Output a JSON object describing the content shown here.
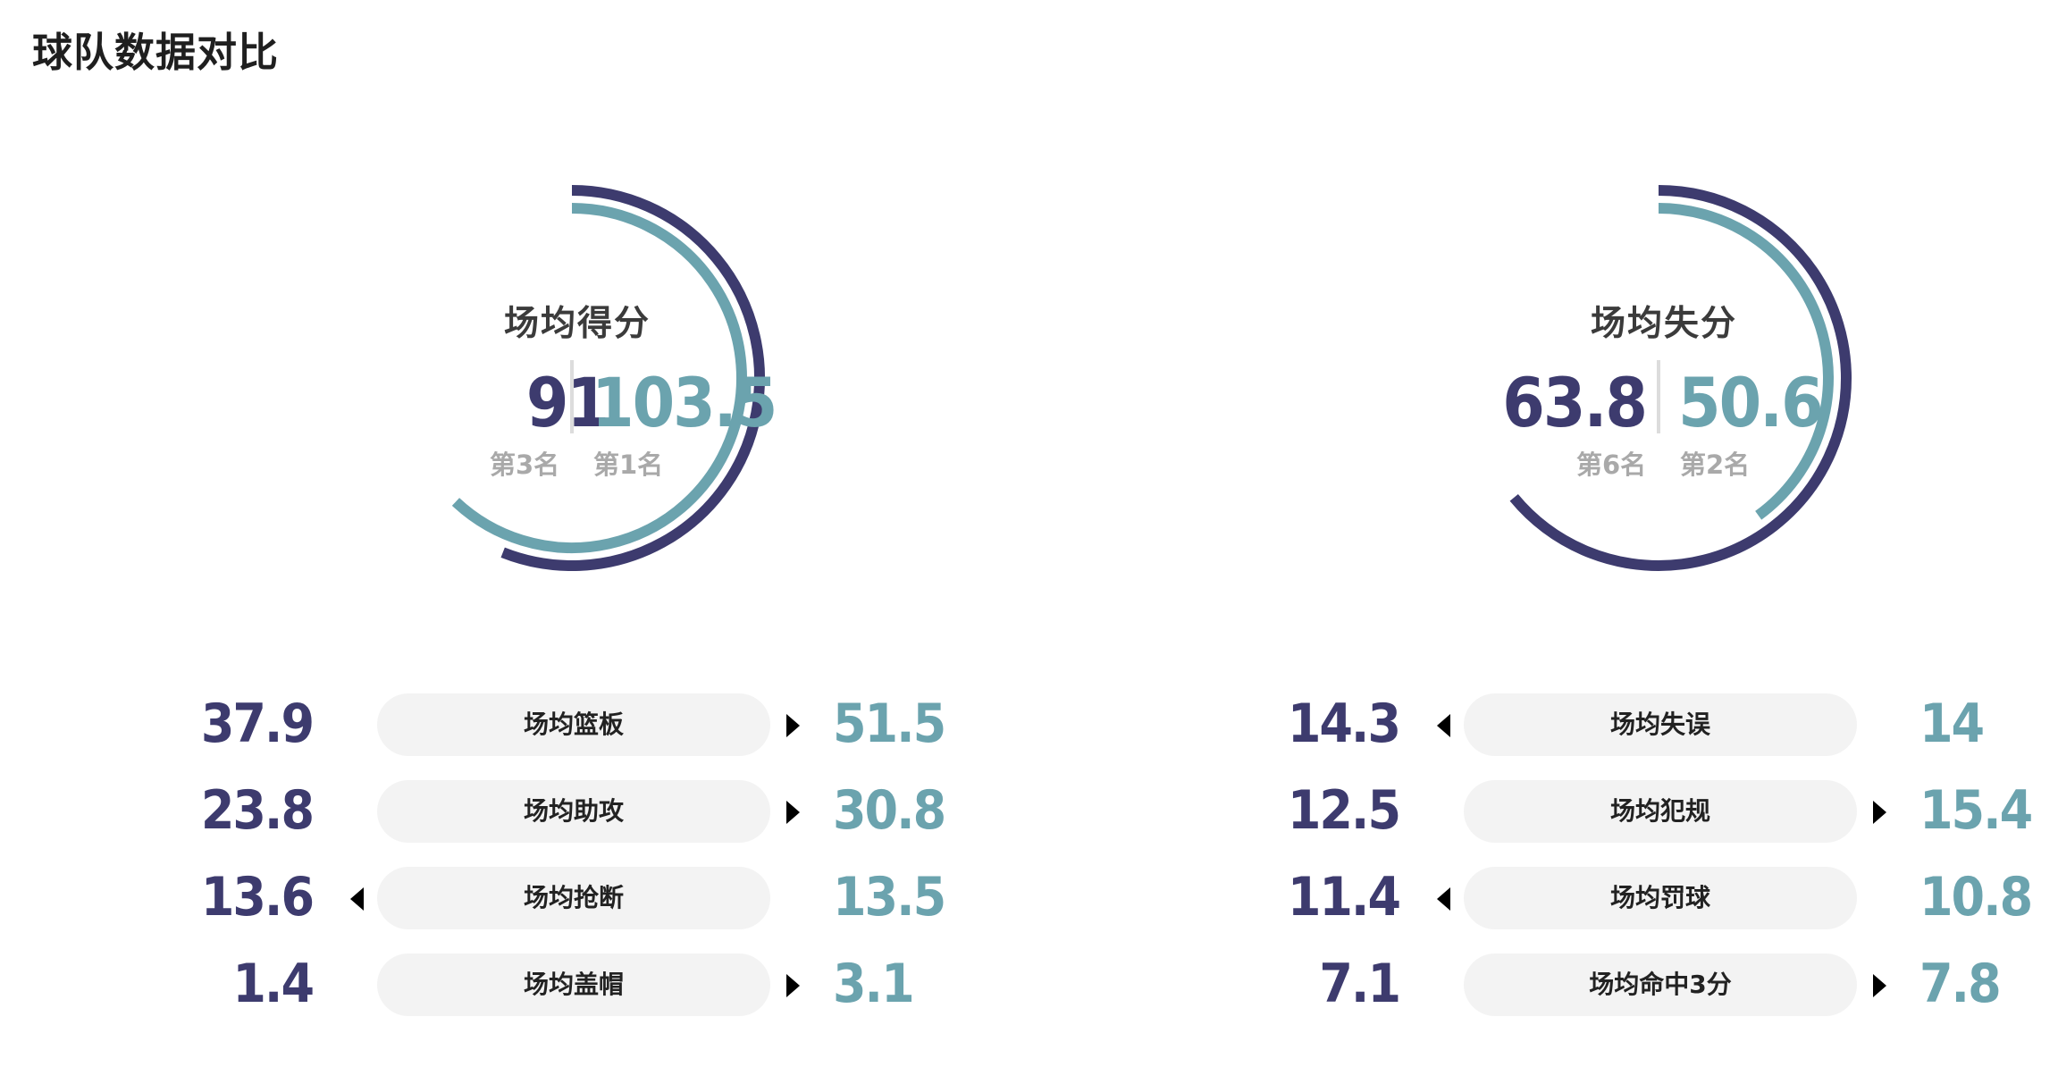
{
  "page_title": "球队数据对比",
  "colors": {
    "team_a": "#3d3b6e",
    "team_b": "#6ba3ae",
    "pill_bg": "#f3f3f3",
    "rank_text": "#a9a9a9"
  },
  "gauges": [
    {
      "title": "场均得分",
      "team_a_value": "91",
      "team_a_rank": "第3名",
      "team_b_value": "103.5",
      "team_b_rank": "第1名",
      "outer_arc_fraction": 0.56,
      "inner_arc_fraction": 0.62
    },
    {
      "title": "场均失分",
      "team_a_value": "63.8",
      "team_a_rank": "第6名",
      "team_b_value": "50.6",
      "team_b_rank": "第2名",
      "outer_arc_fraction": 0.64,
      "inner_arc_fraction": 0.4
    }
  ],
  "left_stats": [
    {
      "label": "场均篮板",
      "team_a": "37.9",
      "team_b": "51.5",
      "arrow": "right"
    },
    {
      "label": "场均助攻",
      "team_a": "23.8",
      "team_b": "30.8",
      "arrow": "right"
    },
    {
      "label": "场均抢断",
      "team_a": "13.6",
      "team_b": "13.5",
      "arrow": "left"
    },
    {
      "label": "场均盖帽",
      "team_a": "1.4",
      "team_b": "3.1",
      "arrow": "right"
    }
  ],
  "right_stats": [
    {
      "label": "场均失误",
      "team_a": "14.3",
      "team_b": "14",
      "arrow": "left"
    },
    {
      "label": "场均犯规",
      "team_a": "12.5",
      "team_b": "15.4",
      "arrow": "right"
    },
    {
      "label": "场均罚球",
      "team_a": "11.4",
      "team_b": "10.8",
      "arrow": "left"
    },
    {
      "label": "场均命中3分",
      "team_a": "7.1",
      "team_b": "7.8",
      "arrow": "right"
    }
  ]
}
